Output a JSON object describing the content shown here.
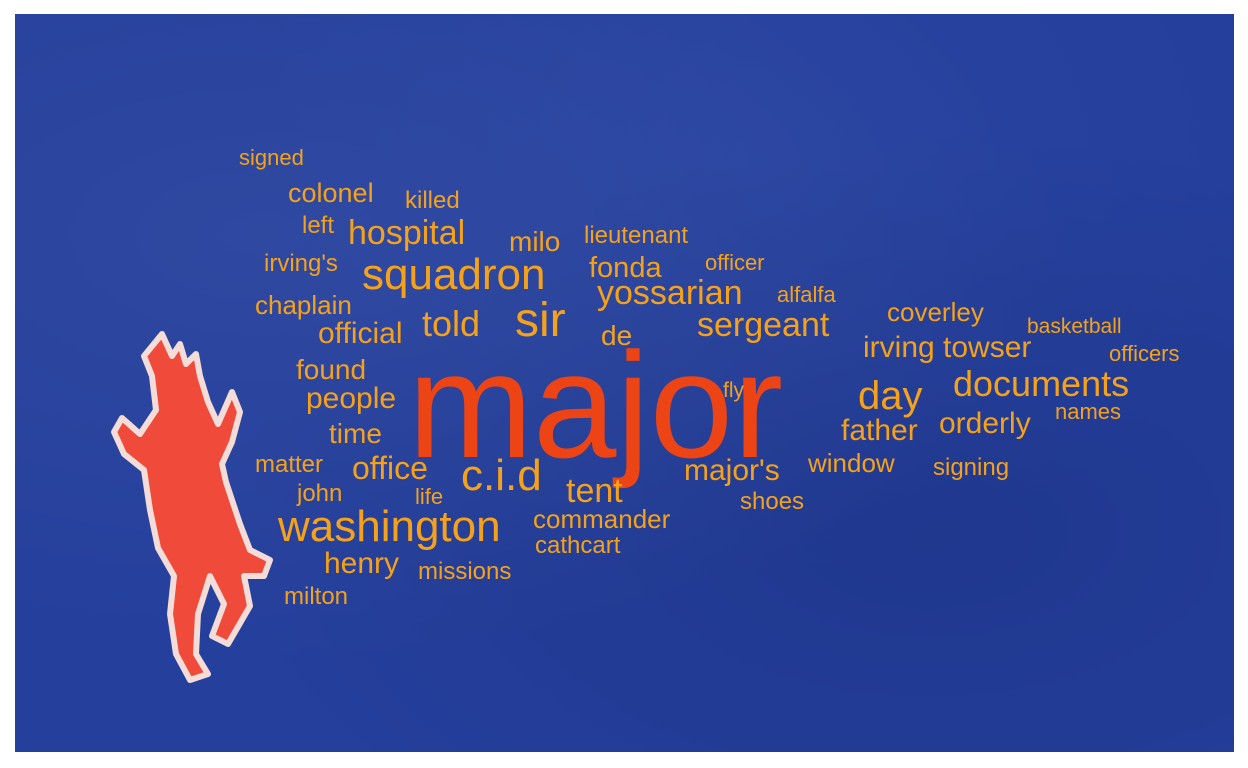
{
  "colors": {
    "background": "#243f9c",
    "word_orange": "#f5a21a",
    "word_red": "#ec4414",
    "figure_fill": "#f04a3a",
    "figure_outline": "#f4dcd8"
  },
  "figure": {
    "icon": "dancing-devil-figure-icon"
  },
  "words": [
    {
      "text": "major",
      "color": "red"
    },
    {
      "text": "sir",
      "color": "orange"
    },
    {
      "text": "squadron",
      "color": "orange"
    },
    {
      "text": "washington",
      "color": "orange"
    },
    {
      "text": "c.i.d",
      "color": "orange"
    },
    {
      "text": "documents",
      "color": "orange"
    },
    {
      "text": "day",
      "color": "orange"
    },
    {
      "text": "yossarian",
      "color": "orange"
    },
    {
      "text": "sergeant",
      "color": "orange"
    },
    {
      "text": "hospital",
      "color": "orange"
    },
    {
      "text": "told",
      "color": "orange"
    },
    {
      "text": "irving towser",
      "color": "orange"
    },
    {
      "text": "tent",
      "color": "orange"
    },
    {
      "text": "office",
      "color": "orange"
    },
    {
      "text": "major's",
      "color": "orange"
    },
    {
      "text": "official",
      "color": "orange"
    },
    {
      "text": "people",
      "color": "orange"
    },
    {
      "text": "orderly",
      "color": "orange"
    },
    {
      "text": "father",
      "color": "orange"
    },
    {
      "text": "commander",
      "color": "orange"
    },
    {
      "text": "time",
      "color": "orange"
    },
    {
      "text": "found",
      "color": "orange"
    },
    {
      "text": "colonel",
      "color": "orange"
    },
    {
      "text": "henry",
      "color": "orange"
    },
    {
      "text": "fonda",
      "color": "orange"
    },
    {
      "text": "window",
      "color": "orange"
    },
    {
      "text": "milo",
      "color": "orange"
    },
    {
      "text": "de",
      "color": "orange"
    },
    {
      "text": "chaplain",
      "color": "orange"
    },
    {
      "text": "irving's",
      "color": "orange"
    },
    {
      "text": "coverley",
      "color": "orange"
    },
    {
      "text": "john",
      "color": "orange"
    },
    {
      "text": "milton",
      "color": "orange"
    },
    {
      "text": "cathcart",
      "color": "orange"
    },
    {
      "text": "lieutenant",
      "color": "orange"
    },
    {
      "text": "left",
      "color": "orange"
    },
    {
      "text": "killed",
      "color": "orange"
    },
    {
      "text": "matter",
      "color": "orange"
    },
    {
      "text": "missions",
      "color": "orange"
    },
    {
      "text": "shoes",
      "color": "orange"
    },
    {
      "text": "signing",
      "color": "orange"
    },
    {
      "text": "names",
      "color": "orange"
    },
    {
      "text": "officer",
      "color": "orange"
    },
    {
      "text": "officers",
      "color": "orange"
    },
    {
      "text": "basketball",
      "color": "orange"
    },
    {
      "text": "alfalfa",
      "color": "orange"
    },
    {
      "text": "signed",
      "color": "orange"
    },
    {
      "text": "life",
      "color": "orange"
    },
    {
      "text": "fly",
      "color": "orange"
    }
  ]
}
